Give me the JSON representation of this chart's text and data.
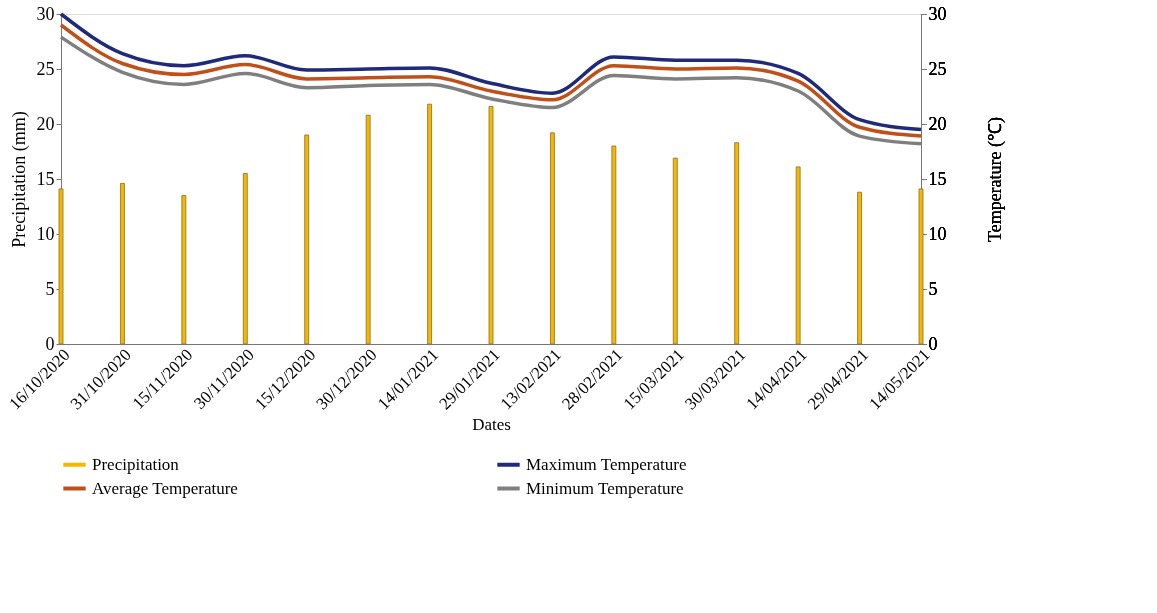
{
  "chart_data": {
    "type": "line",
    "categories": [
      "16/10/2020",
      "31/10/2020",
      "15/11/2020",
      "30/11/2020",
      "15/12/2020",
      "30/12/2020",
      "14/01/2021",
      "29/01/2021",
      "13/02/2021",
      "28/02/2021",
      "15/03/2021",
      "30/03/2021",
      "14/04/2021",
      "29/04/2021",
      "14/05/2021"
    ],
    "series": [
      {
        "name": "Precipitation",
        "type": "bar",
        "axis": "y",
        "color": "#f5b800",
        "values": [
          14.1,
          14.6,
          13.5,
          15.5,
          19.0,
          20.8,
          21.8,
          21.6,
          19.2,
          18.0,
          16.9,
          18.3,
          16.1,
          13.8,
          14.1
        ]
      },
      {
        "name": "Maximum Temperature",
        "axis": "y2",
        "color": "#1f2a7a",
        "values": [
          30.0,
          26.4,
          25.3,
          26.2,
          24.9,
          25.0,
          25.1,
          23.7,
          22.8,
          26.1,
          25.8,
          25.8,
          24.6,
          20.4,
          19.5
        ]
      },
      {
        "name": "Average Temperature",
        "axis": "y2",
        "color": "#c0501a",
        "values": [
          29.0,
          25.5,
          24.5,
          25.4,
          24.1,
          24.2,
          24.3,
          23.0,
          22.2,
          25.3,
          25.0,
          25.1,
          23.9,
          19.7,
          18.9
        ]
      },
      {
        "name": "Minimum Temperature",
        "axis": "y2",
        "color": "#7f7f7f",
        "values": [
          27.9,
          24.7,
          23.6,
          24.6,
          23.3,
          23.5,
          23.6,
          22.3,
          21.5,
          24.4,
          24.1,
          24.2,
          23.0,
          18.9,
          18.2
        ]
      }
    ],
    "xlabel": "Dates",
    "ylabel": "Precipitation  (mm)",
    "y2label": "Temperature  (℃)",
    "ylim": [
      0,
      30
    ],
    "yticks": [
      0,
      5,
      10,
      15,
      20,
      25,
      30
    ],
    "y2lim": [
      0,
      30
    ],
    "y2ticks": [
      0,
      5,
      10,
      15,
      20,
      25,
      30
    ],
    "legend": "bottom"
  }
}
